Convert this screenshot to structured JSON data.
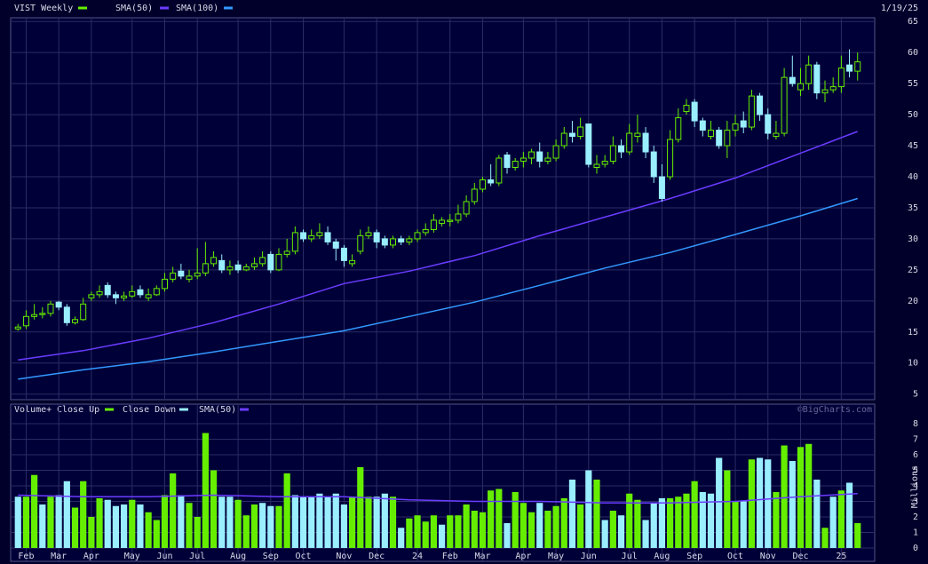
{
  "chart_data": [
    {
      "type": "candlestick",
      "title": "VIST Weekly",
      "date": "1/19/25",
      "up_color": "#66ee00",
      "down_color": "#99eeff",
      "open": [
        15.5,
        16,
        17.5,
        17.8,
        18,
        19.8,
        19,
        16.5,
        17,
        20.5,
        21,
        22.5,
        21,
        20.5,
        20.8,
        21.8,
        20.5,
        21,
        22,
        23.5,
        24.8,
        23.5,
        24,
        24.5,
        26,
        26.5,
        25,
        25.8,
        25,
        25.5,
        26,
        27.5,
        25,
        27.5,
        28,
        31,
        30,
        30.5,
        31,
        29.5,
        28.5,
        26,
        28,
        30.5,
        31,
        30,
        29,
        30,
        29.5,
        30,
        31,
        31.5,
        32.5,
        32.8,
        33,
        34,
        36,
        38,
        39.5,
        39,
        43.5,
        41.5,
        42.5,
        43,
        44,
        42.5,
        43,
        45,
        47,
        46.5,
        48.5,
        41.5,
        42,
        42.5,
        45,
        44,
        46.5,
        47,
        44,
        40,
        40,
        46,
        50.5,
        52,
        49,
        46.5,
        47.5,
        45,
        47.5,
        49,
        48,
        53,
        50,
        46.5,
        47,
        56,
        54,
        55,
        58,
        53.5,
        54,
        54.5,
        58,
        57
      ],
      "high": [
        16.3,
        18.5,
        19.5,
        19,
        20,
        20,
        19.5,
        17.5,
        20.5,
        21.5,
        22.5,
        23,
        21.5,
        21.5,
        22.5,
        22.5,
        22,
        22.5,
        24.5,
        25.5,
        26,
        25,
        28.5,
        29.5,
        28,
        27.5,
        26.5,
        26.5,
        26,
        27,
        28,
        28,
        28.5,
        30,
        32,
        31.5,
        31.5,
        32.5,
        32,
        30,
        29,
        27.5,
        31.5,
        32,
        31.5,
        30.5,
        30.5,
        30.5,
        30.5,
        31.5,
        32.5,
        34,
        33.5,
        34,
        35.5,
        37,
        39,
        40,
        42,
        43.5,
        44,
        43,
        44,
        44.5,
        45.5,
        44,
        46,
        48,
        49,
        49.5,
        48.5,
        43.5,
        43.5,
        46.5,
        46,
        48.5,
        50,
        48,
        45,
        42,
        47.5,
        51,
        52.5,
        52.5,
        49.5,
        49,
        48,
        49,
        50,
        50.5,
        54,
        53.5,
        51,
        49,
        57.5,
        59.5,
        57.5,
        59.5,
        58.5,
        55.5,
        56,
        59.5,
        60.5,
        60
      ],
      "low": [
        15.2,
        15.5,
        17,
        17.2,
        17.5,
        18.5,
        16,
        16.2,
        16.8,
        20,
        20.5,
        20.5,
        19.5,
        20,
        20.5,
        20.5,
        20,
        20.8,
        21.5,
        23,
        23.5,
        23,
        23.5,
        24,
        25.5,
        24.5,
        24.2,
        24.5,
        24.8,
        25,
        25.5,
        24.5,
        24.8,
        27,
        27.5,
        29.5,
        29.5,
        30,
        29,
        26.5,
        25.5,
        25.5,
        27.5,
        30,
        28.5,
        28.5,
        28.5,
        29,
        29,
        29.5,
        30.5,
        31,
        32,
        32,
        32.5,
        33.5,
        35.5,
        37.5,
        38.5,
        38.5,
        40.5,
        41,
        41.5,
        42,
        41.5,
        42,
        42.5,
        44.5,
        45.5,
        46,
        41.5,
        40.5,
        41.5,
        42,
        43,
        43.5,
        45.5,
        43,
        39,
        36,
        39.5,
        45.5,
        50,
        48,
        46.5,
        46,
        44.5,
        43,
        46.5,
        47,
        47.5,
        49,
        46,
        46,
        46.5,
        54.5,
        53,
        54,
        52.5,
        52,
        53.5,
        53.5,
        56,
        55.5
      ],
      "close": [
        15.8,
        17.5,
        17.8,
        18,
        19.5,
        19,
        16.5,
        17,
        19.5,
        21,
        21.5,
        21,
        20.5,
        20.8,
        21.5,
        21,
        21,
        22,
        23.5,
        24.5,
        24,
        24,
        24.5,
        26,
        27,
        25,
        25.5,
        25,
        25.5,
        26,
        27,
        25,
        27.5,
        28,
        31,
        30,
        30.5,
        31,
        29.5,
        28.5,
        26.5,
        26.5,
        30.5,
        31,
        29.5,
        29,
        30,
        29.5,
        30,
        31,
        31.5,
        33,
        33,
        33,
        34,
        36,
        38,
        39.5,
        39,
        43,
        41.5,
        42.5,
        43,
        44,
        42.5,
        43,
        45,
        47,
        46.5,
        48,
        42,
        42,
        42.5,
        45,
        44,
        47,
        47,
        44,
        40,
        36.5,
        46,
        49.5,
        51.5,
        49,
        47.5,
        47.5,
        45,
        47.5,
        48.5,
        48,
        53,
        50,
        47,
        47,
        56,
        55,
        55,
        58,
        53.5,
        54,
        54.5,
        57.5,
        57,
        58.5
      ],
      "series": [
        {
          "name": "SMA(50)",
          "color": "#6a3cff",
          "x": [
            0,
            8,
            16,
            24,
            32,
            40,
            48,
            56,
            64,
            72,
            80,
            88,
            96,
            103
          ],
          "values": [
            10.5,
            12,
            14,
            16.5,
            19.5,
            22.8,
            24.8,
            27.3,
            30.5,
            33.5,
            36.5,
            39.8,
            43.8,
            47.3
          ]
        },
        {
          "name": "SMA(100)",
          "color": "#3399ff",
          "x": [
            0,
            8,
            16,
            24,
            32,
            40,
            48,
            56,
            64,
            72,
            80,
            88,
            96,
            103
          ],
          "values": [
            7.4,
            8.9,
            10.2,
            11.8,
            13.5,
            15.2,
            17.5,
            19.8,
            22.5,
            25.3,
            27.8,
            30.7,
            33.7,
            36.5
          ]
        }
      ],
      "xlim": [
        -0.9,
        105.1
      ],
      "ylim": [
        4.1,
        65.6
      ],
      "yticks": [
        5,
        10,
        15,
        20,
        25,
        30,
        35,
        40,
        45,
        50,
        55,
        60,
        65
      ],
      "grid": true
    },
    {
      "type": "bar",
      "title": "Volume+",
      "source": "©BigCharts.com",
      "y_label": "Millions",
      "series": [
        {
          "name": "Close Up",
          "color": "#66ee00",
          "values": [
            null,
            3.3,
            4.7,
            null,
            3.3,
            null,
            null,
            2.6,
            4.3,
            2.0,
            3.2,
            null,
            null,
            null,
            3.1,
            null,
            2.3,
            1.8,
            3.4,
            4.8,
            null,
            2.9,
            2.0,
            7.4,
            5.0,
            null,
            null,
            3.1,
            2.1,
            2.8,
            null,
            null,
            2.7,
            4.8,
            null,
            null,
            null,
            null,
            null,
            null,
            null,
            3.3,
            5.2,
            3.3,
            null,
            null,
            3.3,
            null,
            1.9,
            2.1,
            1.7,
            2.1,
            null,
            2.1,
            2.1,
            2.8,
            2.4,
            2.3,
            3.7,
            3.8,
            null,
            3.6,
            2.9,
            2.3,
            null,
            2.4,
            2.7,
            3.2,
            null,
            2.8,
            null,
            4.4,
            null,
            2.4,
            null,
            3.5,
            3.1,
            null,
            null,
            null,
            3.2,
            3.3,
            3.5,
            4.3,
            null,
            null,
            null,
            5.0,
            3.0,
            null,
            5.7,
            null,
            null,
            3.6,
            6.6,
            null,
            6.5,
            6.7,
            null,
            1.3,
            null,
            3.7,
            null,
            1.6
          ]
        },
        {
          "name": "Close Down",
          "color": "#99eeff",
          "values": [
            3.3,
            null,
            null,
            2.8,
            null,
            3.4,
            4.3,
            null,
            null,
            null,
            null,
            3.1,
            2.7,
            2.8,
            null,
            2.8,
            null,
            null,
            null,
            null,
            3.4,
            null,
            null,
            null,
            null,
            3.3,
            3.3,
            null,
            null,
            null,
            2.9,
            2.7,
            null,
            null,
            3.4,
            3.3,
            3.3,
            3.5,
            3.3,
            3.5,
            2.8,
            null,
            null,
            null,
            3.3,
            3.5,
            null,
            1.3,
            null,
            null,
            null,
            null,
            1.5,
            null,
            null,
            null,
            null,
            null,
            null,
            null,
            1.6,
            null,
            null,
            null,
            2.9,
            null,
            null,
            null,
            4.4,
            null,
            5.0,
            null,
            1.8,
            null,
            2.1,
            null,
            null,
            1.8,
            2.9,
            3.2,
            null,
            null,
            null,
            null,
            3.6,
            3.5,
            5.8,
            null,
            null,
            3.0,
            null,
            5.8,
            5.7,
            null,
            null,
            5.6,
            null,
            null,
            4.4,
            null,
            3.3,
            null,
            4.2,
            null
          ]
        },
        {
          "name": "SMA(50)",
          "type": "line",
          "color": "#6a3cff",
          "x": [
            0,
            8,
            16,
            24,
            32,
            40,
            48,
            56,
            64,
            72,
            80,
            88,
            96,
            103
          ],
          "values": [
            3.4,
            3.3,
            3.3,
            3.4,
            3.3,
            3.3,
            3.1,
            3.0,
            3.0,
            2.9,
            2.9,
            3.0,
            3.3,
            3.5
          ]
        }
      ],
      "xlim": [
        -0.9,
        105.1
      ],
      "ylim": [
        -0.86,
        9.26
      ],
      "yticks": [
        0,
        1,
        2,
        3,
        4,
        5,
        6,
        7,
        8
      ],
      "xticks": [
        {
          "value": 1,
          "label": "Feb"
        },
        {
          "value": 5,
          "label": "Mar"
        },
        {
          "value": 9,
          "label": "Apr"
        },
        {
          "value": 14,
          "label": "May"
        },
        {
          "value": 18,
          "label": "Jun"
        },
        {
          "value": 22,
          "label": "Jul"
        },
        {
          "value": 27,
          "label": "Aug"
        },
        {
          "value": 31,
          "label": "Sep"
        },
        {
          "value": 35,
          "label": "Oct"
        },
        {
          "value": 40,
          "label": "Nov"
        },
        {
          "value": 44,
          "label": "Dec"
        },
        {
          "value": 49,
          "label": "24"
        },
        {
          "value": 53,
          "label": "Feb"
        },
        {
          "value": 57,
          "label": "Mar"
        },
        {
          "value": 62,
          "label": "Apr"
        },
        {
          "value": 66,
          "label": "May"
        },
        {
          "value": 70,
          "label": "Jun"
        },
        {
          "value": 75,
          "label": "Jul"
        },
        {
          "value": 79,
          "label": "Aug"
        },
        {
          "value": 83,
          "label": "Sep"
        },
        {
          "value": 88,
          "label": "Oct"
        },
        {
          "value": 92,
          "label": "Nov"
        },
        {
          "value": 96,
          "label": "Dec"
        },
        {
          "value": 101,
          "label": "25"
        }
      ],
      "grid": true
    }
  ]
}
